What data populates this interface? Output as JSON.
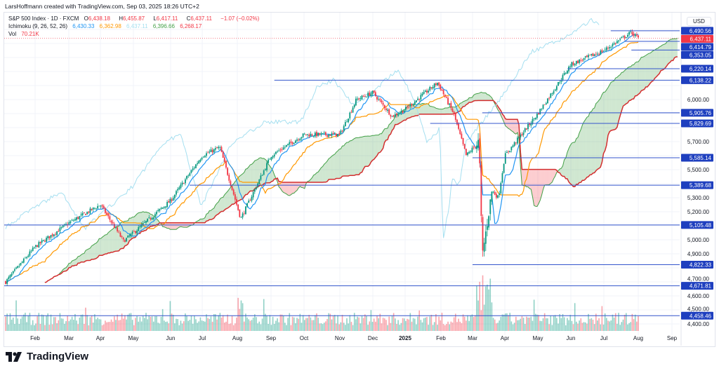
{
  "credit": "LarsHoffmann created with TradingView.com, Sep 03, 2025 18:26 UTC+2",
  "legend": {
    "symbol": "S&P 500 Index · 1D · FXCM",
    "open_label": "O",
    "open": "6,438.18",
    "high_label": "H",
    "high": "6,455.87",
    "low_label": "L",
    "low": "6,417.11",
    "close_label": "C",
    "close": "6,437.11",
    "change": "−1.07 (−0.02%)",
    "ichimoku_label": "Ichimoku (9, 26, 52, 26)",
    "ichimoku_values": [
      "6,430.33",
      "6,362.98",
      "6,437.11",
      "6,396.66",
      "6,268.17"
    ],
    "vol_label": "Vol",
    "vol": "70.21K"
  },
  "currency": "USD",
  "brand": "TradingView",
  "colors": {
    "up": "#089981",
    "down": "#f23645",
    "tenkan": "#2196f3",
    "kijun": "#ff9800",
    "lagging": "#a5dff0",
    "spanA": "#43a047",
    "spanB": "#d32f2f",
    "level": "#1e3fbf",
    "last": "#f23645"
  },
  "chart_data": {
    "type": "candlestick",
    "title": "S&P 500 Index · 1D · FXCM",
    "ylim": [
      4350,
      6560
    ],
    "y_ticks": [
      4400,
      4500,
      4600,
      4700,
      4900,
      5000,
      5200,
      5300,
      5500,
      5700,
      6000
    ],
    "y_tick_labels": [
      "4,400.00",
      "4,500.00",
      "4,600.00",
      "4,700.00",
      "4,900.00",
      "5,000.00",
      "5,200.00",
      "5,300.00",
      "5,500.00",
      "5,700.00",
      "6,000.00"
    ],
    "x_ticks": [
      "Feb",
      "Mar",
      "Apr",
      "May",
      "Jun",
      "Jul",
      "Aug",
      "Sep",
      "Oct",
      "Nov",
      "Dec",
      "2025",
      "Feb",
      "Mar",
      "Apr",
      "May",
      "Jun",
      "Jul",
      "Aug",
      "Sep"
    ],
    "price_waypoints": [
      {
        "month_index": 0,
        "close": 4700
      },
      {
        "month_index": 1,
        "close": 4950
      },
      {
        "month_index": 2,
        "close": 5120
      },
      {
        "month_index": 3,
        "close": 5250
      },
      {
        "month_index": 3.7,
        "close": 4990
      },
      {
        "month_index": 4,
        "close": 5050
      },
      {
        "month_index": 5,
        "close": 5280
      },
      {
        "month_index": 6,
        "close": 5600
      },
      {
        "month_index": 6.5,
        "close": 5660
      },
      {
        "month_index": 7.1,
        "close": 5150
      },
      {
        "month_index": 8,
        "close": 5600
      },
      {
        "month_index": 9,
        "close": 5750
      },
      {
        "month_index": 10,
        "close": 5750
      },
      {
        "month_index": 10.5,
        "close": 6000
      },
      {
        "month_index": 11,
        "close": 6050
      },
      {
        "month_index": 11.6,
        "close": 5880
      },
      {
        "month_index": 12,
        "close": 5930
      },
      {
        "month_index": 12.9,
        "close": 6120
      },
      {
        "month_index": 13.4,
        "close": 5900
      },
      {
        "month_index": 13.8,
        "close": 5600
      },
      {
        "month_index": 14.2,
        "close": 5700
      },
      {
        "month_index": 14.3,
        "close": 4880
      },
      {
        "month_index": 14.6,
        "close": 5350
      },
      {
        "month_index": 14.8,
        "close": 5300
      },
      {
        "month_index": 15,
        "close": 5600
      },
      {
        "month_index": 16,
        "close": 5900
      },
      {
        "month_index": 17,
        "close": 6250
      },
      {
        "month_index": 18,
        "close": 6350
      },
      {
        "month_index": 18.8,
        "close": 6480
      },
      {
        "month_index": 19,
        "close": 6437
      }
    ],
    "levels": [
      {
        "price": 6490.56,
        "label": "6,490.56",
        "from_month": 18.2
      },
      {
        "price": 6414.79,
        "label": "6,414.79",
        "from_month": 18.6
      },
      {
        "price": 6353.05,
        "label": "6,353.05",
        "from_month": 18.8
      },
      {
        "price": 6220.14,
        "label": "6,220.14",
        "from_month": 16.9
      },
      {
        "price": 6138.22,
        "label": "6,138.22",
        "from_month": 8.1
      },
      {
        "price": 5905.76,
        "label": "5,905.76",
        "from_month": 14.3
      },
      {
        "price": 5829.69,
        "label": "5,829.69",
        "from_month": 12.7
      },
      {
        "price": 5585.14,
        "label": "5,585.14",
        "from_month": 14.0
      },
      {
        "price": 5389.68,
        "label": "5,389.68",
        "from_month": 5.6
      },
      {
        "price": 5105.48,
        "label": "5,105.48",
        "from_month": -1
      },
      {
        "price": 4822.33,
        "label": "4,822.33",
        "from_month": 14.0
      },
      {
        "price": 4671.81,
        "label": "4,671.81",
        "from_month": -1
      },
      {
        "price": 4458.46,
        "label": "4,458.46",
        "from_month": -1
      }
    ],
    "last_price": {
      "price": 6437.11,
      "label": "6,437.11"
    },
    "indicators": [
      "Ichimoku (9, 26, 52, 26)",
      "Volume"
    ]
  }
}
